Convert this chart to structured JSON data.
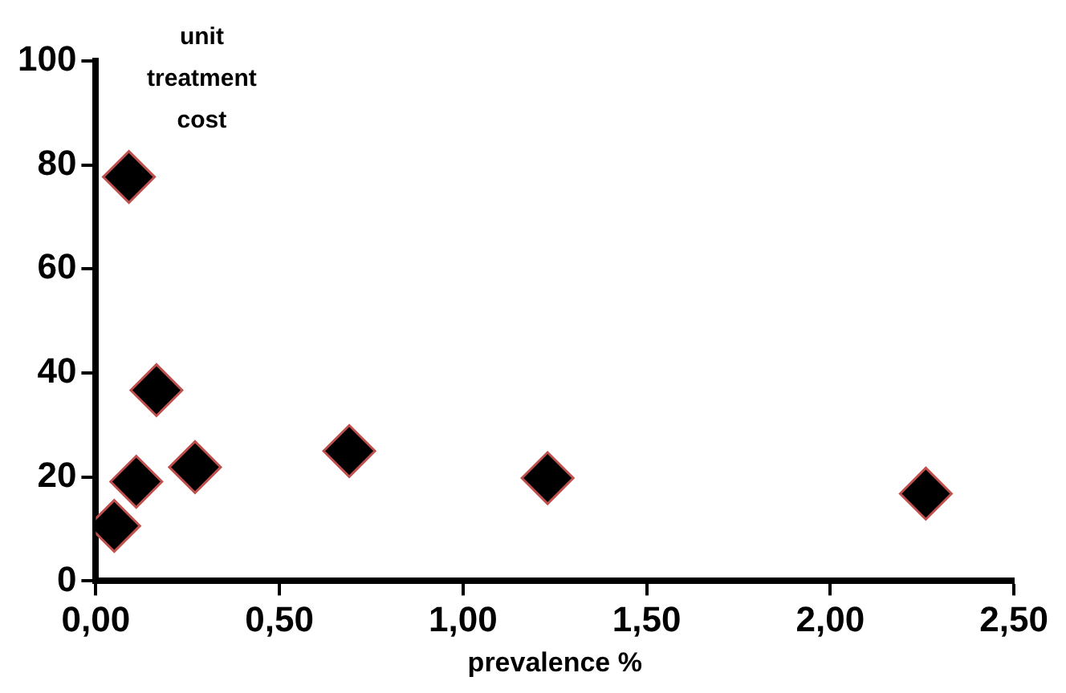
{
  "chart_data": {
    "type": "scatter",
    "xlabel": "prevalence %",
    "ylabel": "unit treatment cost",
    "x": [
      0.09,
      0.165,
      0.11,
      0.05,
      0.27,
      0.69,
      1.23,
      2.26
    ],
    "values": [
      77.7,
      36.7,
      19.1,
      10.6,
      21.9,
      25.0,
      19.8,
      16.8
    ],
    "color": "#000000",
    "marker": "diamond",
    "xlim": [
      0,
      2.5
    ],
    "ylim": [
      0,
      100
    ],
    "xticks": [
      {
        "value": 0,
        "label": "0,00"
      },
      {
        "value": 0.5,
        "label": "0,50"
      },
      {
        "value": 1,
        "label": "1,00"
      },
      {
        "value": 1.5,
        "label": "1,50"
      },
      {
        "value": 2,
        "label": "2,00"
      },
      {
        "value": 2.5,
        "label": "2,50"
      }
    ],
    "yticks": [
      0,
      20,
      40,
      60,
      80,
      100
    ],
    "grid": false,
    "legend": false
  }
}
